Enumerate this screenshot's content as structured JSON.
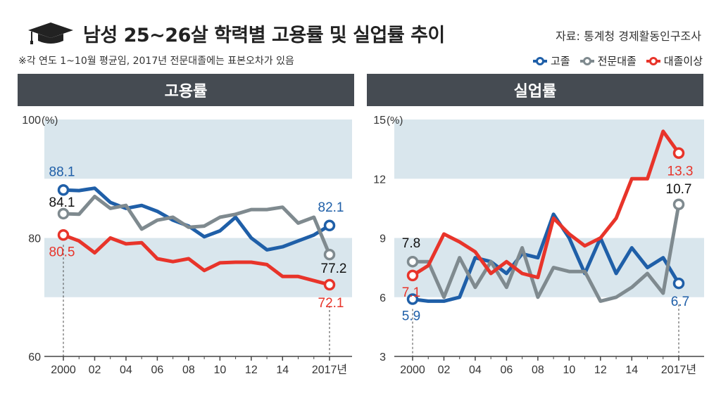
{
  "title": "남성 25~26살 학력별 고용률 및 실업률 추이",
  "source": "자료: 통계청 경제활동인구조사",
  "note": "※각 연도 1~10월 평균임, 2017년 전문대졸에는 표본오차가 있음",
  "icon": "graduation-cap-icon",
  "legend": [
    {
      "name": "고졸",
      "color": "#1f5fa8"
    },
    {
      "name": "전문대졸",
      "color": "#7f8a8f"
    },
    {
      "name": "대졸이상",
      "color": "#e8342a"
    }
  ],
  "chart_data": [
    {
      "type": "line",
      "title": "고용률",
      "ylabel": "(%)",
      "ylim": [
        60,
        100
      ],
      "yticks": [
        "60",
        "80",
        "100"
      ],
      "xtick_labels": [
        "2000",
        "02",
        "04",
        "06",
        "08",
        "10",
        "12",
        "14",
        "2017년"
      ],
      "x": [
        2000,
        2001,
        2002,
        2003,
        2004,
        2005,
        2006,
        2007,
        2008,
        2009,
        2010,
        2011,
        2012,
        2013,
        2014,
        2015,
        2016,
        2017
      ],
      "series": [
        {
          "name": "고졸",
          "color": "#1f5fa8",
          "values": [
            88.1,
            88.0,
            88.4,
            86.0,
            85.0,
            85.5,
            84.5,
            83.0,
            82.0,
            80.2,
            81.2,
            83.5,
            80.0,
            78.0,
            78.5,
            79.5,
            80.5,
            82.1
          ]
        },
        {
          "name": "전문대졸",
          "color": "#7f8a8f",
          "values": [
            84.1,
            84.0,
            87.0,
            85.0,
            85.5,
            81.5,
            83.0,
            83.5,
            81.8,
            82.0,
            83.5,
            84.0,
            84.8,
            84.8,
            85.2,
            82.5,
            83.5,
            77.2
          ]
        },
        {
          "name": "대졸이상",
          "color": "#e8342a",
          "values": [
            80.5,
            79.5,
            77.5,
            80.0,
            79.0,
            79.2,
            76.5,
            76.0,
            76.5,
            74.5,
            75.8,
            75.9,
            75.9,
            75.5,
            73.5,
            73.5,
            72.8,
            72.1
          ]
        }
      ],
      "labels": [
        {
          "series": "고졸",
          "x": 2000,
          "text": "88.1"
        },
        {
          "series": "고졸",
          "x": 2017,
          "text": "82.1"
        },
        {
          "series": "전문대졸",
          "x": 2000,
          "text": "84.1"
        },
        {
          "series": "전문대졸",
          "x": 2017,
          "text": "77.2"
        },
        {
          "series": "대졸이상",
          "x": 2000,
          "text": "80.5"
        },
        {
          "series": "대졸이상",
          "x": 2017,
          "text": "72.1"
        }
      ],
      "bands": [
        [
          90,
          100
        ],
        [
          70,
          80
        ]
      ]
    },
    {
      "type": "line",
      "title": "실업률",
      "ylabel": "(%)",
      "ylim": [
        3,
        15
      ],
      "yticks": [
        "3",
        "6",
        "9",
        "12",
        "15"
      ],
      "xtick_labels": [
        "2000",
        "02",
        "04",
        "06",
        "08",
        "10",
        "12",
        "14",
        "2017년"
      ],
      "x": [
        2000,
        2001,
        2002,
        2003,
        2004,
        2005,
        2006,
        2007,
        2008,
        2009,
        2010,
        2011,
        2012,
        2013,
        2014,
        2015,
        2016,
        2017
      ],
      "series": [
        {
          "name": "고졸",
          "color": "#1f5fa8",
          "values": [
            5.9,
            5.8,
            5.8,
            6.0,
            8.0,
            7.8,
            7.2,
            8.2,
            8.0,
            10.2,
            9.0,
            7.2,
            9.0,
            7.2,
            8.5,
            7.5,
            8.0,
            6.7
          ]
        },
        {
          "name": "전문대졸",
          "color": "#7f8a8f",
          "values": [
            7.8,
            7.8,
            6.0,
            8.0,
            6.5,
            7.8,
            6.5,
            8.5,
            6.0,
            7.5,
            7.3,
            7.3,
            5.8,
            6.0,
            6.5,
            7.2,
            6.2,
            10.7
          ]
        },
        {
          "name": "대졸이상",
          "color": "#e8342a",
          "values": [
            7.1,
            7.6,
            9.2,
            8.8,
            8.3,
            7.2,
            7.8,
            7.2,
            7.0,
            10.0,
            9.2,
            8.6,
            9.0,
            10.0,
            12.0,
            12.0,
            14.4,
            13.3
          ]
        }
      ],
      "labels": [
        {
          "series": "고졸",
          "x": 2000,
          "text": "5.9"
        },
        {
          "series": "고졸",
          "x": 2017,
          "text": "6.7"
        },
        {
          "series": "전문대졸",
          "x": 2000,
          "text": "7.8"
        },
        {
          "series": "전문대졸",
          "x": 2017,
          "text": "10.7"
        },
        {
          "series": "대졸이상",
          "x": 2000,
          "text": "7.1"
        },
        {
          "series": "대졸이상",
          "x": 2017,
          "text": "13.3"
        }
      ],
      "bands": [
        [
          12,
          15
        ],
        [
          6,
          9
        ]
      ]
    }
  ]
}
